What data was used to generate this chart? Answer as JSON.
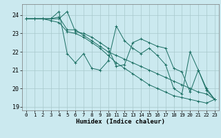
{
  "xlabel": "Humidex (Indice chaleur)",
  "ylabel": "",
  "bg_color": "#cbe9ef",
  "grid_color": "#a8c8cc",
  "line_color": "#1a6e62",
  "xlim": [
    -0.5,
    23.5
  ],
  "ylim": [
    18.8,
    24.6
  ],
  "yticks": [
    19,
    20,
    21,
    22,
    23,
    24
  ],
  "xticks": [
    0,
    1,
    2,
    3,
    4,
    5,
    6,
    7,
    8,
    9,
    10,
    11,
    12,
    13,
    14,
    15,
    16,
    17,
    18,
    19,
    20,
    21,
    22,
    23
  ],
  "lines": [
    {
      "x": [
        0,
        1,
        2,
        3,
        4,
        5,
        6,
        7,
        8,
        9,
        10,
        11,
        12,
        13,
        14,
        15,
        16,
        17,
        18,
        19,
        20,
        21,
        22,
        23
      ],
      "y": [
        23.8,
        23.8,
        23.8,
        23.8,
        23.8,
        24.2,
        23.1,
        23.0,
        22.8,
        22.5,
        22.2,
        21.2,
        21.3,
        22.5,
        22.7,
        22.5,
        22.3,
        22.2,
        21.1,
        20.9,
        19.8,
        21.0,
        19.9,
        19.4
      ]
    },
    {
      "x": [
        0,
        1,
        2,
        3,
        4,
        5,
        6,
        7,
        8,
        9,
        10,
        11,
        12,
        13,
        14,
        15,
        16,
        17,
        18,
        19,
        20,
        21,
        22,
        23
      ],
      "y": [
        23.8,
        23.8,
        23.8,
        23.8,
        24.2,
        21.9,
        21.4,
        21.9,
        21.1,
        21.0,
        21.5,
        23.4,
        22.6,
        22.2,
        21.9,
        22.2,
        21.8,
        21.3,
        20.0,
        19.7,
        22.0,
        21.0,
        20.0,
        19.4
      ]
    },
    {
      "x": [
        0,
        1,
        2,
        3,
        4,
        5,
        6,
        7,
        8,
        9,
        10,
        11,
        12,
        13,
        14,
        15,
        16,
        17,
        18,
        19,
        20,
        21,
        22,
        23
      ],
      "y": [
        23.8,
        23.8,
        23.8,
        23.8,
        23.9,
        23.2,
        23.2,
        22.9,
        22.6,
        22.3,
        22.0,
        21.8,
        21.6,
        21.4,
        21.2,
        21.0,
        20.8,
        20.6,
        20.4,
        20.2,
        20.0,
        19.8,
        19.7,
        19.4
      ]
    },
    {
      "x": [
        0,
        1,
        2,
        3,
        4,
        5,
        6,
        7,
        8,
        9,
        10,
        11,
        12,
        13,
        14,
        15,
        16,
        17,
        18,
        19,
        20,
        21,
        22,
        23
      ],
      "y": [
        23.8,
        23.8,
        23.8,
        23.7,
        23.6,
        23.1,
        23.0,
        22.8,
        22.5,
        22.2,
        21.8,
        21.4,
        21.1,
        20.8,
        20.5,
        20.2,
        20.0,
        19.8,
        19.6,
        19.5,
        19.4,
        19.3,
        19.2,
        19.4
      ]
    }
  ]
}
